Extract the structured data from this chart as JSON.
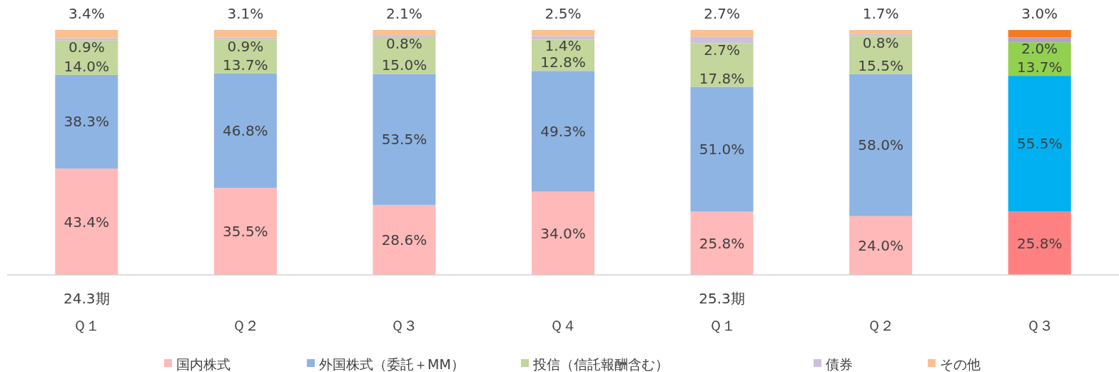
{
  "chart_data": {
    "type": "bar",
    "stacked": true,
    "legend": "bottom",
    "categories": [
      "24.3期Ｑ１",
      "Ｑ２",
      "Ｑ３",
      "Ｑ４",
      "25.3期Ｑ１",
      "Ｑ２",
      "Ｑ３"
    ],
    "series": [
      {
        "name": "国内株式",
        "color": "#ffb9b9",
        "colors": [
          "#ffb9b9",
          "#ffb9b9",
          "#ffb9b9",
          "#ffb9b9",
          "#ffb9b9",
          "#ffb9b9",
          "#ff8080"
        ],
        "values": [
          43.4,
          35.5,
          28.6,
          34.0,
          25.8,
          24.0,
          25.8
        ],
        "value_labels": [
          "43.4%",
          "35.5%",
          "28.6%",
          "34.0%",
          "25.8%",
          "24.0%",
          "25.8%"
        ]
      },
      {
        "name": "外国株式（委託＋MM）",
        "color": "#8eb4e3",
        "colors": [
          "#8eb4e3",
          "#8eb4e3",
          "#8eb4e3",
          "#8eb4e3",
          "#8eb4e3",
          "#8eb4e3",
          "#00b0f0"
        ],
        "values": [
          38.3,
          46.8,
          53.5,
          49.3,
          51.0,
          58.0,
          55.5
        ],
        "value_labels": [
          "38.3%",
          "46.8%",
          "53.5%",
          "49.3%",
          "51.0%",
          "58.0%",
          "55.5%"
        ]
      },
      {
        "name": "投信（信託報酬含む）",
        "color": "#c3d69b",
        "colors": [
          "#c3d69b",
          "#c3d69b",
          "#c3d69b",
          "#c3d69b",
          "#c3d69b",
          "#c3d69b",
          "#92d050"
        ],
        "values": [
          14.0,
          13.7,
          15.0,
          12.8,
          17.8,
          15.5,
          13.7
        ],
        "value_labels": [
          "14.0%",
          "13.7%",
          "15.0%",
          "12.8%",
          "17.8%",
          "15.5%",
          "13.7%"
        ]
      },
      {
        "name": "債券",
        "color": "#ccc1da",
        "colors": [
          "#ccc1da",
          "#ccc1da",
          "#ccc1da",
          "#ccc1da",
          "#ccc1da",
          "#ccc1da",
          "#b3a2c7"
        ],
        "values": [
          0.9,
          0.9,
          0.8,
          1.4,
          2.7,
          0.8,
          2.0
        ],
        "value_labels": [
          "0.9%",
          "0.9%",
          "0.8%",
          "1.4%",
          "2.7%",
          "0.8%",
          "2.0%"
        ]
      },
      {
        "name": "その他",
        "color": "#fac090",
        "colors": [
          "#fac090",
          "#fac090",
          "#fac090",
          "#fac090",
          "#fac090",
          "#fac090",
          "#f57b20"
        ],
        "values": [
          3.4,
          3.1,
          2.1,
          2.5,
          2.7,
          1.7,
          3.0
        ],
        "value_labels": [
          "3.4%",
          "3.1%",
          "2.1%",
          "2.5%",
          "2.7%",
          "1.7%",
          "3.0%"
        ]
      }
    ]
  }
}
